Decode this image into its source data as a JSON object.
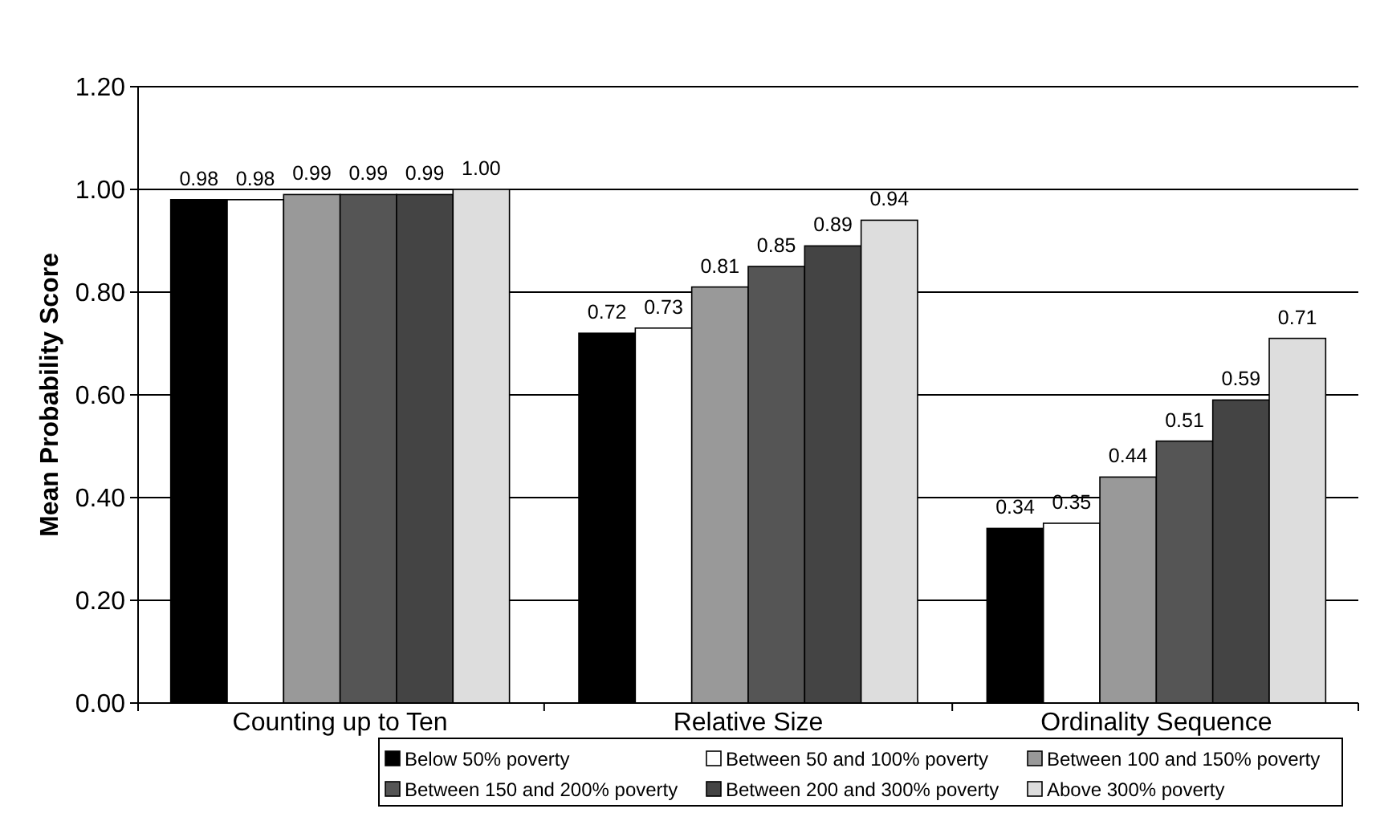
{
  "chart_data": {
    "type": "bar",
    "ylabel": "Mean Probability Score",
    "categories": [
      "Counting up to Ten",
      "Relative Size",
      "Ordinality Sequence"
    ],
    "series": [
      {
        "name": "Below 50% poverty",
        "color": "#000000",
        "values": [
          0.98,
          0.72,
          0.34
        ],
        "value_labels": [
          "0.98",
          "0.72",
          "0.34"
        ]
      },
      {
        "name": "Between 50 and 100% poverty",
        "color": "#ffffff",
        "values": [
          0.98,
          0.73,
          0.35
        ],
        "value_labels": [
          "0.98",
          "0.73",
          "0.35"
        ]
      },
      {
        "name": "Between 100 and 150% poverty",
        "color": "#999999",
        "values": [
          0.99,
          0.81,
          0.44
        ],
        "value_labels": [
          "0.99",
          "0.81",
          "0.44"
        ]
      },
      {
        "name": "Between 150 and 200% poverty",
        "color": "#555555",
        "values": [
          0.99,
          0.85,
          0.51
        ],
        "value_labels": [
          "0.99",
          "0.85",
          "0.51"
        ]
      },
      {
        "name": "Between 200 and 300% poverty",
        "color": "#444444",
        "values": [
          0.99,
          0.89,
          0.59
        ],
        "value_labels": [
          "0.99",
          "0.89",
          "0.59"
        ]
      },
      {
        "name": "Above 300% poverty",
        "color": "#dddddd",
        "values": [
          1.0,
          0.94,
          0.71
        ],
        "value_labels": [
          "1.00",
          "0.94",
          "0.71"
        ]
      }
    ],
    "ylim": [
      0,
      1.2
    ],
    "yticks": [
      {
        "value": 0,
        "label": "0.00"
      },
      {
        "value": 0.2,
        "label": "0.20"
      },
      {
        "value": 0.4,
        "label": "0.40"
      },
      {
        "value": 0.6,
        "label": "0.60"
      },
      {
        "value": 0.8,
        "label": "0.80"
      },
      {
        "value": 1,
        "label": "1.00"
      },
      {
        "value": 1.2,
        "label": "1.20"
      }
    ],
    "grid": "y",
    "legend": "bottom"
  }
}
